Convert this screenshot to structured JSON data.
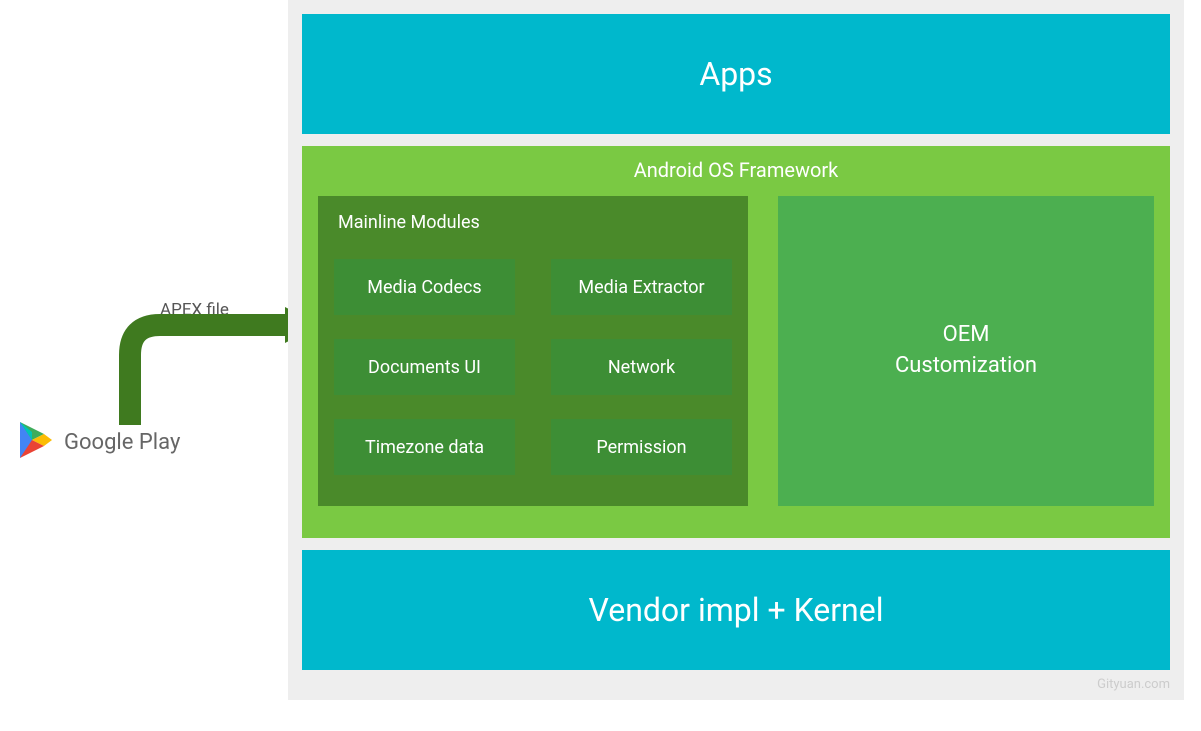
{
  "diagram": {
    "outer_bg": "#eeeeee",
    "apps": {
      "label": "Apps",
      "bg": "#00b8cc",
      "text_color": "#ffffff",
      "fontsize": 32
    },
    "framework": {
      "title": "Android OS Framework",
      "bg": "#7ac943",
      "text_color": "#ffffff",
      "title_fontsize": 20,
      "mainline": {
        "title": "Mainline Modules",
        "bg": "#4a8a2a",
        "item_bg": "#3d8e35",
        "item_fontsize": 18,
        "modules": [
          "Media Codecs",
          "Media Extractor",
          "Documents UI",
          "Network",
          "Timezone data",
          "Permission"
        ]
      },
      "oem": {
        "label": "OEM\nCustomization",
        "bg": "#4caf50",
        "fontsize": 22
      }
    },
    "vendor": {
      "label": "Vendor impl + Kernel",
      "bg": "#00b8cc",
      "text_color": "#ffffff",
      "fontsize": 32
    }
  },
  "source": {
    "label": "Google Play",
    "apex_label": "APEX file",
    "arrow_color": "#3f7a1f",
    "play_icon_colors": {
      "red": "#ea4335",
      "yellow": "#fbbc04",
      "green": "#34a853",
      "blue": "#4285f4"
    }
  },
  "watermark": "Gityuan.com"
}
